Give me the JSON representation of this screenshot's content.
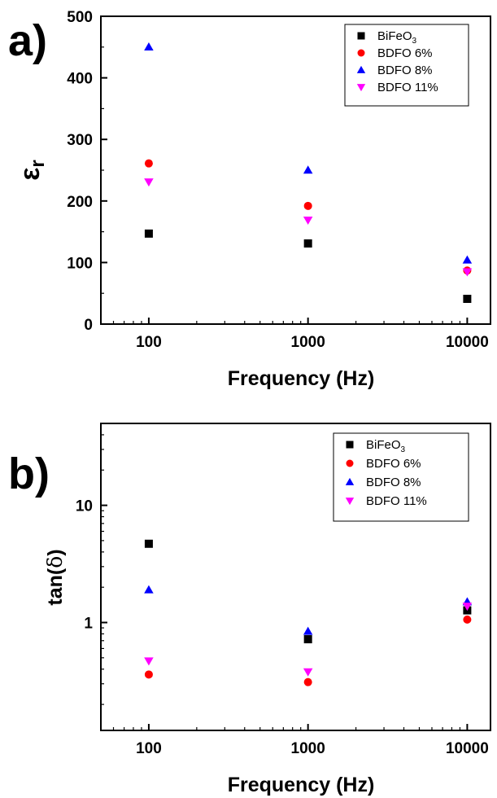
{
  "chart_data": [
    {
      "type": "scatter",
      "panel_label": "a)",
      "xlabel": "Frequency (Hz)",
      "ylabel": "εr",
      "x_scale": "log",
      "xlim": [
        50,
        14000
      ],
      "ylim": [
        0,
        500
      ],
      "x_ticks": [
        100,
        1000,
        10000
      ],
      "x_tick_labels": [
        "100",
        "1000",
        "10000"
      ],
      "y_ticks": [
        0,
        100,
        200,
        300,
        400,
        500
      ],
      "y_tick_labels": [
        "0",
        "100",
        "200",
        "300",
        "400",
        "500"
      ],
      "grid": false,
      "legend_position": "top-right",
      "x": [
        100,
        1000,
        10000
      ],
      "series": [
        {
          "name": "BiFeO3",
          "legend_main": "BiFeO",
          "legend_sub": "3",
          "marker": "square",
          "color": "#000000",
          "values": [
            147,
            131,
            41
          ]
        },
        {
          "name": "BDFO 6%",
          "marker": "circle",
          "color": "#ff0000",
          "values": [
            261,
            192,
            87
          ]
        },
        {
          "name": "BDFO 8%",
          "marker": "triangle-up",
          "color": "#0000ff",
          "values": [
            450,
            250,
            104
          ]
        },
        {
          "name": "BDFO 11%",
          "marker": "triangle-down",
          "color": "#ff00ff",
          "values": [
            231,
            169,
            85
          ]
        }
      ]
    },
    {
      "type": "scatter",
      "panel_label": "b)",
      "xlabel": "Frequency (Hz)",
      "ylabel_main": "tan(",
      "ylabel_symbol": "δ",
      "ylabel_close": ")",
      "x_scale": "log",
      "y_scale": "log",
      "xlim": [
        50,
        14000
      ],
      "ylim": [
        0.12,
        50
      ],
      "x_ticks": [
        100,
        1000,
        10000
      ],
      "x_tick_labels": [
        "100",
        "1000",
        "10000"
      ],
      "y_ticks": [
        1,
        10
      ],
      "y_tick_labels": [
        "1",
        "10"
      ],
      "grid": false,
      "legend_position": "top-right",
      "x": [
        100,
        1000,
        10000
      ],
      "series": [
        {
          "name": "BiFeO3",
          "legend_main": "BiFeO",
          "legend_sub": "3",
          "marker": "square",
          "color": "#000000",
          "values": [
            4.7,
            0.72,
            1.27
          ]
        },
        {
          "name": "BDFO 6%",
          "marker": "circle",
          "color": "#ff0000",
          "values": [
            0.36,
            0.31,
            1.06
          ]
        },
        {
          "name": "BDFO 8%",
          "marker": "triangle-up",
          "color": "#0000ff",
          "values": [
            1.9,
            0.84,
            1.5
          ]
        },
        {
          "name": "BDFO 11%",
          "marker": "triangle-down",
          "color": "#ff00ff",
          "values": [
            0.47,
            0.38,
            1.38
          ]
        }
      ]
    }
  ]
}
